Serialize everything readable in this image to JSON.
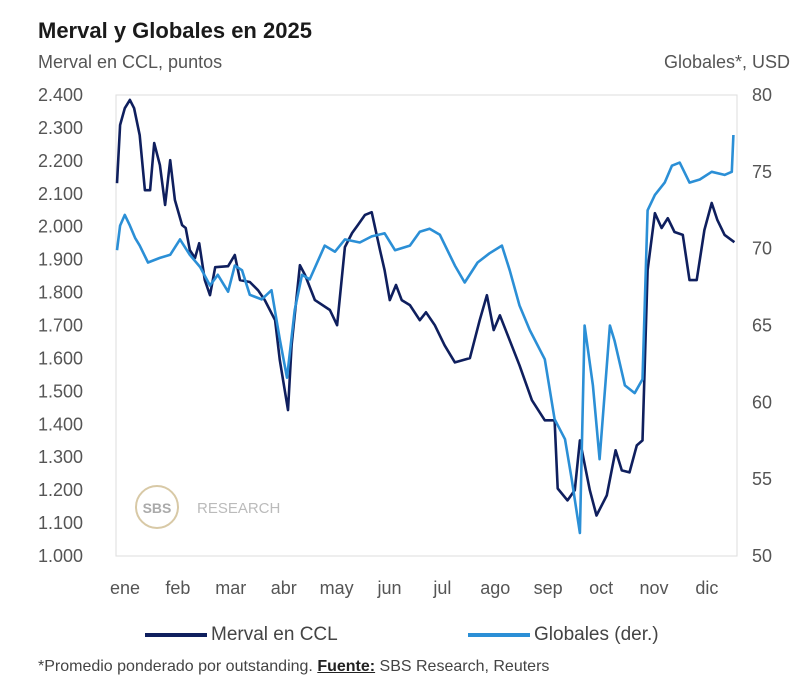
{
  "chart_data": {
    "type": "line",
    "title": "Merval y Globales en 2025",
    "ylabel_left": "Merval en CCL, puntos",
    "ylabel_right": "Globales*, USD",
    "x_unit": "months elapsed since 1 Jan 2025",
    "categories": [
      "ene",
      "feb",
      "mar",
      "abr",
      "may",
      "jun",
      "jul",
      "ago",
      "sep",
      "oct",
      "nov",
      "dic"
    ],
    "yticks_left": [
      "2.400",
      "2.300",
      "2.200",
      "2.100",
      "2.000",
      "1.900",
      "1.800",
      "1.700",
      "1.600",
      "1.500",
      "1.400",
      "1.300",
      "1.200",
      "1.100",
      "1.000"
    ],
    "ylim_left": [
      1000,
      2400
    ],
    "yticks_right": [
      "80",
      "75",
      "70",
      "65",
      "60",
      "55",
      "50"
    ],
    "ylim_right": [
      50,
      80
    ],
    "grid": false,
    "legend_position": "bottom",
    "series": [
      {
        "name": "Merval en CCL",
        "axis": "left",
        "color": "#0f1f5e",
        "points": [
          [
            0,
            2132
          ],
          [
            0.06,
            2309
          ],
          [
            0.15,
            2360
          ],
          [
            0.25,
            2385
          ],
          [
            0.33,
            2360
          ],
          [
            0.44,
            2278
          ],
          [
            0.54,
            2111
          ],
          [
            0.64,
            2111
          ],
          [
            0.72,
            2254
          ],
          [
            0.83,
            2187
          ],
          [
            0.93,
            2066
          ],
          [
            1.03,
            2202
          ],
          [
            1.12,
            2081
          ],
          [
            1.26,
            2005
          ],
          [
            1.33,
            1996
          ],
          [
            1.41,
            1929
          ],
          [
            1.51,
            1905
          ],
          [
            1.59,
            1950
          ],
          [
            1.7,
            1838
          ],
          [
            1.8,
            1792
          ],
          [
            1.9,
            1877
          ],
          [
            2.15,
            1880
          ],
          [
            2.28,
            1914
          ],
          [
            2.38,
            1838
          ],
          [
            2.57,
            1832
          ],
          [
            2.73,
            1807
          ],
          [
            2.86,
            1777
          ],
          [
            3.06,
            1716
          ],
          [
            3.15,
            1595
          ],
          [
            3.31,
            1443
          ],
          [
            3.38,
            1640
          ],
          [
            3.54,
            1883
          ],
          [
            3.64,
            1853
          ],
          [
            3.83,
            1777
          ],
          [
            4.12,
            1747
          ],
          [
            4.26,
            1701
          ],
          [
            4.41,
            1938
          ],
          [
            4.55,
            1981
          ],
          [
            4.66,
            2005
          ],
          [
            4.8,
            2036
          ],
          [
            4.93,
            2044
          ],
          [
            5.09,
            1929
          ],
          [
            5.18,
            1868
          ],
          [
            5.28,
            1777
          ],
          [
            5.4,
            1823
          ],
          [
            5.51,
            1777
          ],
          [
            5.67,
            1762
          ],
          [
            5.86,
            1716
          ],
          [
            5.98,
            1740
          ],
          [
            6.15,
            1701
          ],
          [
            6.34,
            1640
          ],
          [
            6.54,
            1588
          ],
          [
            6.83,
            1601
          ],
          [
            7.02,
            1716
          ],
          [
            7.16,
            1792
          ],
          [
            7.29,
            1686
          ],
          [
            7.41,
            1731
          ],
          [
            7.6,
            1655
          ],
          [
            7.79,
            1579
          ],
          [
            8.03,
            1473
          ],
          [
            8.28,
            1412
          ],
          [
            8.47,
            1412
          ],
          [
            8.53,
            1205
          ],
          [
            8.72,
            1169
          ],
          [
            8.86,
            1200
          ],
          [
            8.96,
            1351
          ],
          [
            9.15,
            1200
          ],
          [
            9.28,
            1123
          ],
          [
            9.48,
            1184
          ],
          [
            9.65,
            1321
          ],
          [
            9.77,
            1260
          ],
          [
            9.92,
            1254
          ],
          [
            10.06,
            1336
          ],
          [
            10.17,
            1351
          ],
          [
            10.27,
            1868
          ],
          [
            10.41,
            2041
          ],
          [
            10.54,
            1996
          ],
          [
            10.66,
            2026
          ],
          [
            10.79,
            1984
          ],
          [
            10.95,
            1975
          ],
          [
            11.08,
            1838
          ],
          [
            11.22,
            1838
          ],
          [
            11.37,
            1990
          ],
          [
            11.51,
            2072
          ],
          [
            11.62,
            2020
          ],
          [
            11.76,
            1975
          ],
          [
            11.95,
            1953
          ]
        ]
      },
      {
        "name": "Globales (der.)",
        "axis": "right",
        "color": "#2b8fd6",
        "points": [
          [
            0,
            69.9
          ],
          [
            0.06,
            71.5
          ],
          [
            0.15,
            72.2
          ],
          [
            0.25,
            71.5
          ],
          [
            0.35,
            70.7
          ],
          [
            0.44,
            70.2
          ],
          [
            0.6,
            69.1
          ],
          [
            0.83,
            69.4
          ],
          [
            1.03,
            69.6
          ],
          [
            1.22,
            70.6
          ],
          [
            1.41,
            69.6
          ],
          [
            1.61,
            68.8
          ],
          [
            1.8,
            67.6
          ],
          [
            1.95,
            68.3
          ],
          [
            2.15,
            67.2
          ],
          [
            2.28,
            68.9
          ],
          [
            2.42,
            68.6
          ],
          [
            2.57,
            67.0
          ],
          [
            2.8,
            66.7
          ],
          [
            2.99,
            67.3
          ],
          [
            3.15,
            64.1
          ],
          [
            3.29,
            61.6
          ],
          [
            3.44,
            66.0
          ],
          [
            3.58,
            68.3
          ],
          [
            3.73,
            68.0
          ],
          [
            4.02,
            70.2
          ],
          [
            4.22,
            69.8
          ],
          [
            4.41,
            70.6
          ],
          [
            4.7,
            70.4
          ],
          [
            4.93,
            70.8
          ],
          [
            5.18,
            71.0
          ],
          [
            5.38,
            69.9
          ],
          [
            5.67,
            70.2
          ],
          [
            5.86,
            71.1
          ],
          [
            6.05,
            71.3
          ],
          [
            6.25,
            70.9
          ],
          [
            6.54,
            68.9
          ],
          [
            6.73,
            67.8
          ],
          [
            6.98,
            69.1
          ],
          [
            7.21,
            69.7
          ],
          [
            7.45,
            70.2
          ],
          [
            7.6,
            68.6
          ],
          [
            7.79,
            66.3
          ],
          [
            7.99,
            64.7
          ],
          [
            8.28,
            62.8
          ],
          [
            8.47,
            58.9
          ],
          [
            8.67,
            57.6
          ],
          [
            8.8,
            55.0
          ],
          [
            8.96,
            51.5
          ],
          [
            9.05,
            65.0
          ],
          [
            9.21,
            61.1
          ],
          [
            9.34,
            56.3
          ],
          [
            9.54,
            65.0
          ],
          [
            9.63,
            64.0
          ],
          [
            9.83,
            61.1
          ],
          [
            10.02,
            60.6
          ],
          [
            10.17,
            61.5
          ],
          [
            10.27,
            72.5
          ],
          [
            10.41,
            73.5
          ],
          [
            10.6,
            74.3
          ],
          [
            10.74,
            75.4
          ],
          [
            10.89,
            75.6
          ],
          [
            11.08,
            74.3
          ],
          [
            11.28,
            74.5
          ],
          [
            11.51,
            75.0
          ],
          [
            11.76,
            74.8
          ],
          [
            11.9,
            75.0
          ],
          [
            11.93,
            77.4
          ]
        ]
      }
    ]
  },
  "footnote": {
    "text": "*Promedio ponderado por outstanding. ",
    "source_label": "Fuente:",
    "source": " SBS Research, Reuters"
  },
  "watermark": {
    "logo": "SBS",
    "text": "RESEARCH"
  }
}
